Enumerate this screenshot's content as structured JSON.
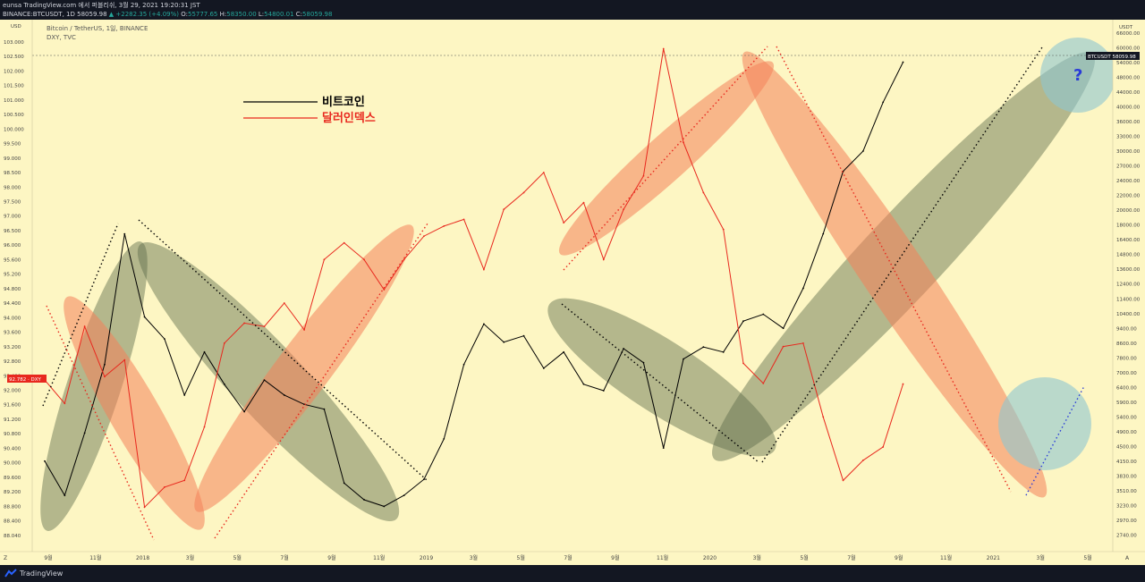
{
  "header": {
    "line1": "eunsa TradingView.com 에서 퍼블리쉬, 3월 29, 2021 19:20:31 JST",
    "symbol": "BINANCE:BTCUSDT, 1D",
    "last": "58059.98",
    "change": "+2282.35 (+4.09%)",
    "o_label": "O:",
    "o_val": "55777.65",
    "h_label": "H:",
    "h_val": "58350.00",
    "l_label": "L:",
    "l_val": "54800.01",
    "c_label": "C:",
    "c_val": "58059.98"
  },
  "chart_title": {
    "line1": "Bitcoin / TetherUS, 1일, BINANCE",
    "line2": "DXY, TVC"
  },
  "legend": [
    {
      "label": "비트코인",
      "color": "#000000"
    },
    {
      "label": "달러인덱스",
      "color": "#e8281e"
    }
  ],
  "question_mark": "?",
  "left_axis": {
    "unit": "USD",
    "ticks": [
      "103.000",
      "102.500",
      "102.000",
      "101.500",
      "101.000",
      "100.500",
      "100.000",
      "99.500",
      "99.000",
      "98.500",
      "98.000",
      "97.500",
      "97.000",
      "96.500",
      "96.000",
      "95.600",
      "95.200",
      "94.800",
      "94.400",
      "94.000",
      "93.600",
      "93.200",
      "92.800",
      "92.400",
      "92.000",
      "91.600",
      "91.200",
      "90.800",
      "90.400",
      "90.000",
      "89.600",
      "89.200",
      "88.800",
      "88.400",
      "88.040"
    ],
    "marker": "92.782 · DXY"
  },
  "right_axis": {
    "unit": "USDT",
    "ticks": [
      "66000.00",
      "60000.00",
      "54000.00",
      "48000.00",
      "44000.00",
      "40000.00",
      "36000.00",
      "33000.00",
      "30000.00",
      "27000.00",
      "24000.00",
      "22000.00",
      "20000.00",
      "18000.00",
      "16400.00",
      "14800.00",
      "13600.00",
      "12400.00",
      "11400.00",
      "10400.00",
      "9400.00",
      "8600.00",
      "7800.00",
      "7000.00",
      "6400.00",
      "5900.00",
      "5400.00",
      "4900.00",
      "4500.00",
      "4150.00",
      "3830.00",
      "3510.00",
      "3230.00",
      "2970.00",
      "2740.00"
    ],
    "marker": "BTCUSDT   58059.98"
  },
  "x_axis": {
    "ticks": [
      "9월",
      "11월",
      "2018",
      "3월",
      "5월",
      "7월",
      "9월",
      "11월",
      "2019",
      "3월",
      "5월",
      "7월",
      "9월",
      "11월",
      "2020",
      "3월",
      "5월",
      "7월",
      "9월",
      "11월",
      "2021",
      "3월",
      "5월"
    ]
  },
  "footer": {
    "brand": "TradingView",
    "z_label": "Z",
    "a_label": "A"
  },
  "colors": {
    "background": "#fdf6c3",
    "btc": "#000000",
    "dxy": "#e8281e",
    "green_ellipse": "#5c6b4a",
    "red_ellipse": "#f4825a",
    "blue_circle": "#8ec7d1"
  },
  "chart_data": {
    "type": "line",
    "title": "Bitcoin / TetherUS, 1일, BINANCE",
    "series": [
      {
        "name": "비트코인",
        "color": "#000000",
        "x": [
          "2017-08",
          "2017-09",
          "2017-10",
          "2017-11",
          "2017-12",
          "2018-01",
          "2018-02",
          "2018-03",
          "2018-04",
          "2018-05",
          "2018-06",
          "2018-07",
          "2018-08",
          "2018-09",
          "2018-10",
          "2018-11",
          "2018-12",
          "2019-01",
          "2019-02",
          "2019-03",
          "2019-04",
          "2019-05",
          "2019-06",
          "2019-07",
          "2019-08",
          "2019-09",
          "2019-10",
          "2019-11",
          "2019-12",
          "2020-01",
          "2020-02",
          "2020-03",
          "2020-04",
          "2020-05",
          "2020-06",
          "2020-07",
          "2020-08",
          "2020-09",
          "2020-10",
          "2020-11",
          "2020-12",
          "2021-01",
          "2021-02",
          "2021-03"
        ],
        "y": [
          4600,
          3700,
          5500,
          8500,
          19500,
          11500,
          10000,
          7000,
          9200,
          7500,
          6300,
          7700,
          7000,
          6600,
          6400,
          4000,
          3600,
          3450,
          3700,
          4100,
          5300,
          8500,
          11000,
          9800,
          10200,
          8300,
          9200,
          7500,
          7200,
          9400,
          8600,
          5000,
          8800,
          9500,
          9200,
          11200,
          11700,
          10700,
          13800,
          19500,
          29000,
          33000,
          45000,
          58059.98
        ]
      },
      {
        "name": "달러인덱스",
        "color": "#e8281e",
        "x": [
          "2017-08",
          "2017-09",
          "2017-10",
          "2017-11",
          "2017-12",
          "2018-01",
          "2018-02",
          "2018-03",
          "2018-04",
          "2018-05",
          "2018-06",
          "2018-07",
          "2018-08",
          "2018-09",
          "2018-10",
          "2018-11",
          "2018-12",
          "2019-01",
          "2019-02",
          "2019-03",
          "2019-04",
          "2019-05",
          "2019-06",
          "2019-07",
          "2019-08",
          "2019-09",
          "2019-10",
          "2019-11",
          "2019-12",
          "2020-01",
          "2020-02",
          "2020-03",
          "2020-04",
          "2020-05",
          "2020-06",
          "2020-07",
          "2020-08",
          "2020-09",
          "2020-10",
          "2020-11",
          "2020-12",
          "2021-01",
          "2021-02",
          "2021-03"
        ],
        "y": [
          92.9,
          92.2,
          94.5,
          93.0,
          93.5,
          89.1,
          89.7,
          89.9,
          91.5,
          94.0,
          94.6,
          94.5,
          95.2,
          94.4,
          96.5,
          97.0,
          96.5,
          95.6,
          96.5,
          97.2,
          97.5,
          97.7,
          96.2,
          98.0,
          98.5,
          99.1,
          97.6,
          98.2,
          96.5,
          98.0,
          99.0,
          102.8,
          100.0,
          98.5,
          97.4,
          93.4,
          92.8,
          93.9,
          94.0,
          91.8,
          89.9,
          90.5,
          90.9,
          92.78
        ]
      }
    ],
    "ylim_left": [
      88.04,
      103.0
    ],
    "ylim_right": [
      2740,
      66000
    ],
    "right_scale": "log"
  }
}
